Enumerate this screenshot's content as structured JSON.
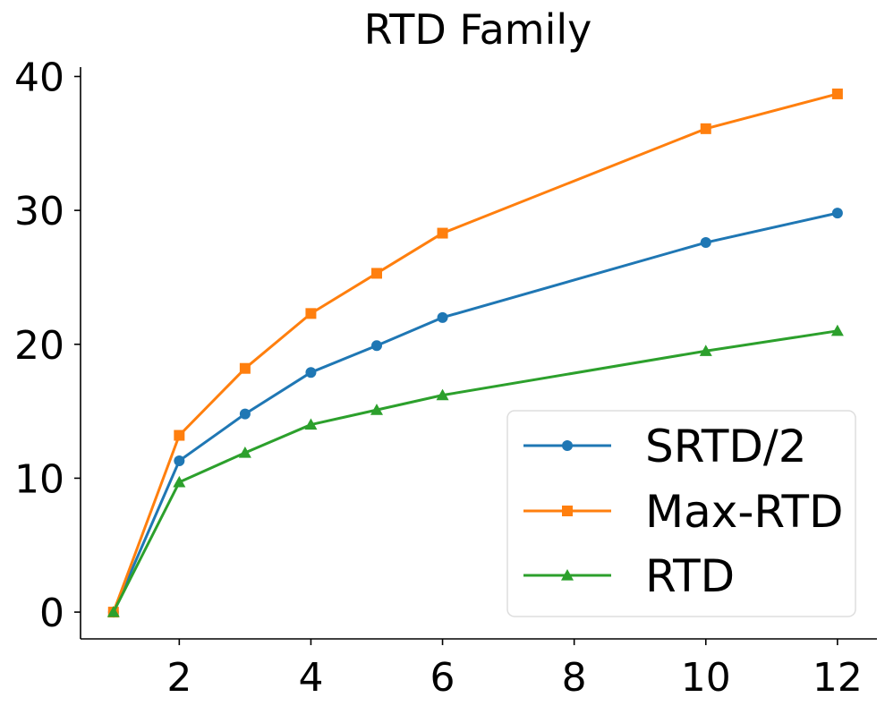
{
  "chart_data": {
    "type": "line",
    "title": "RTD Family",
    "xlabel": "",
    "ylabel": "",
    "x": [
      1,
      2,
      3,
      4,
      5,
      6,
      10,
      12
    ],
    "xlim": [
      0.5,
      12.6
    ],
    "ylim": [
      -2,
      40.7
    ],
    "xticks": [
      2,
      4,
      6,
      8,
      10,
      12
    ],
    "yticks": [
      0,
      10,
      20,
      30,
      40
    ],
    "grid": false,
    "legend_position": "lower-right",
    "series": [
      {
        "name": "SRTD/2",
        "values": [
          0.0,
          11.3,
          14.8,
          17.9,
          19.9,
          22.0,
          27.6,
          29.8
        ],
        "color": "#1f77b4",
        "marker": "circle"
      },
      {
        "name": "Max-RTD",
        "values": [
          0.0,
          13.2,
          18.2,
          22.3,
          25.3,
          28.3,
          36.1,
          38.7
        ],
        "color": "#ff7f0e",
        "marker": "square"
      },
      {
        "name": "RTD",
        "values": [
          0.0,
          9.7,
          11.9,
          14.0,
          15.1,
          16.2,
          19.5,
          21.0
        ],
        "color": "#2ca02c",
        "marker": "triangle"
      }
    ]
  }
}
